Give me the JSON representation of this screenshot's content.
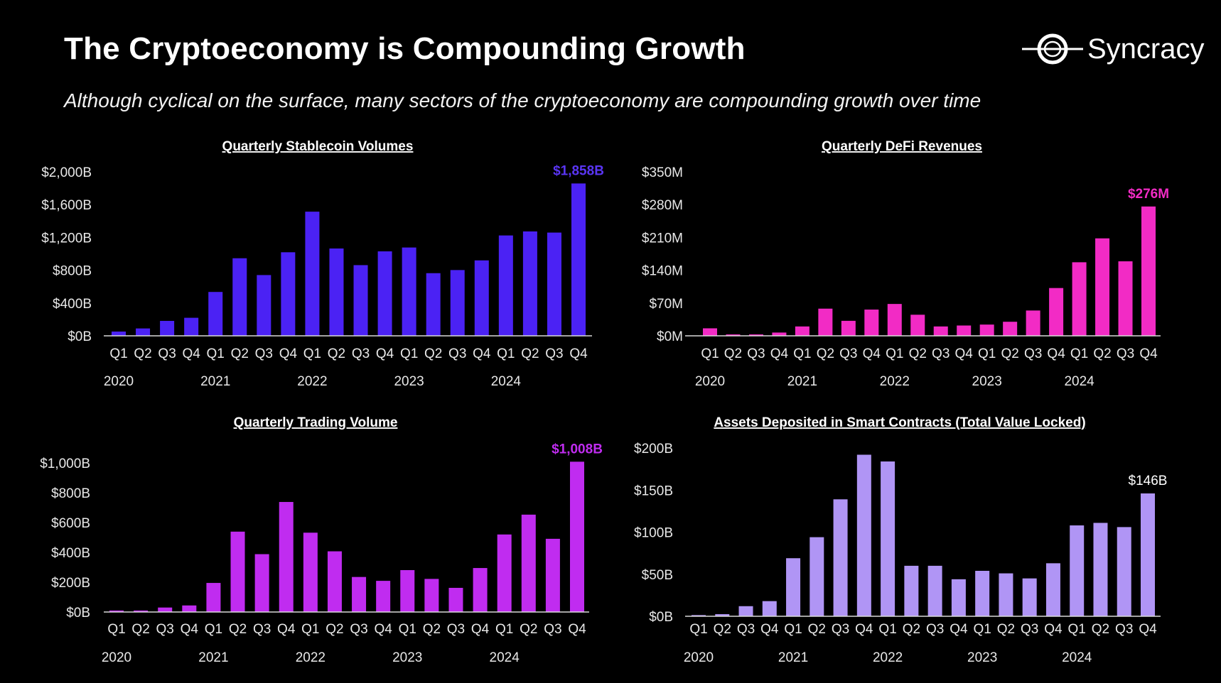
{
  "header": {
    "title": "The Cryptoeconomy is Compounding Growth",
    "subtitle": "Although cyclical on the surface, many sectors of the cryptoeconomy are compounding growth over time",
    "logo_text": "Syncracy"
  },
  "chart_data": [
    {
      "type": "bar",
      "title": "Quarterly Stablecoin Volumes",
      "categories": [
        "Q1",
        "Q2",
        "Q3",
        "Q4",
        "Q1",
        "Q2",
        "Q3",
        "Q4",
        "Q1",
        "Q2",
        "Q3",
        "Q4",
        "Q1",
        "Q2",
        "Q3",
        "Q4",
        "Q1",
        "Q2",
        "Q3",
        "Q4"
      ],
      "years": [
        "2020",
        "2021",
        "2022",
        "2023",
        "2024"
      ],
      "values": [
        52,
        90,
        182,
        220,
        535,
        946,
        741,
        1019,
        1514,
        1065,
        862,
        1030,
        1077,
        764,
        802,
        920,
        1224,
        1273,
        1259,
        1858
      ],
      "unit": "B",
      "yticks": [
        "$0B",
        "$400B",
        "$800B",
        "$1,200B",
        "$1,600B",
        "$2,000B"
      ],
      "ylim": [
        0,
        2000
      ],
      "callout": "$1,858B",
      "color": "#4b22f4",
      "callout_color": "#5a35f5"
    },
    {
      "type": "bar",
      "title": "Quarterly DeFi Revenues",
      "categories": [
        "Q1",
        "Q2",
        "Q3",
        "Q4",
        "Q1",
        "Q2",
        "Q3",
        "Q4",
        "Q1",
        "Q2",
        "Q3",
        "Q4",
        "Q1",
        "Q2",
        "Q3",
        "Q4",
        "Q1",
        "Q2",
        "Q3",
        "Q4"
      ],
      "years": [
        "2020",
        "2021",
        "2022",
        "2023",
        "2024"
      ],
      "values": [
        16,
        3,
        3,
        7,
        20,
        58,
        32,
        56,
        68,
        45,
        20,
        22,
        24,
        30,
        54,
        102,
        157,
        208,
        159,
        276
      ],
      "unit": "M",
      "yticks": [
        "$0M",
        "$70M",
        "$140M",
        "$210M",
        "$280M",
        "$350M"
      ],
      "ylim": [
        0,
        350
      ],
      "callout": "$276M",
      "color": "#f22bc5",
      "callout_color": "#f22bc5"
    },
    {
      "type": "bar",
      "title": "Quarterly Trading Volume",
      "categories": [
        "Q1",
        "Q2",
        "Q3",
        "Q4",
        "Q1",
        "Q2",
        "Q3",
        "Q4",
        "Q1",
        "Q2",
        "Q3",
        "Q4",
        "Q1",
        "Q2",
        "Q3",
        "Q4",
        "Q1",
        "Q2",
        "Q3",
        "Q4"
      ],
      "years": [
        "2020",
        "2021",
        "2022",
        "2023",
        "2024"
      ],
      "values": [
        10,
        10,
        30,
        44,
        195,
        539,
        388,
        738,
        532,
        407,
        235,
        209,
        281,
        222,
        162,
        295,
        520,
        653,
        491,
        1008
      ],
      "unit": "B",
      "yticks": [
        "$0B",
        "$200B",
        "$400B",
        "$600B",
        "$800B",
        "$1,000B"
      ],
      "ylim": [
        0,
        1000
      ],
      "callout": "$1,008B",
      "color": "#c02cf0",
      "callout_color": "#c02cf0"
    },
    {
      "type": "bar",
      "title": "Assets Deposited in Smart Contracts (Total Value Locked)",
      "categories": [
        "Q1",
        "Q2",
        "Q3",
        "Q4",
        "Q1",
        "Q2",
        "Q3",
        "Q4",
        "Q1",
        "Q2",
        "Q3",
        "Q4",
        "Q1",
        "Q2",
        "Q3",
        "Q4",
        "Q1",
        "Q2",
        "Q3",
        "Q4"
      ],
      "years": [
        "2020",
        "2021",
        "2022",
        "2023",
        "2024"
      ],
      "values": [
        1.4,
        2.5,
        12,
        18,
        69,
        94,
        139,
        192,
        184,
        60,
        60,
        44,
        54,
        51,
        45,
        63,
        108,
        111,
        106,
        146
      ],
      "unit": "B",
      "yticks": [
        "$0B",
        "$50B",
        "$100B",
        "$150B",
        "$200B"
      ],
      "ylim": [
        0,
        200
      ],
      "callout": "$146B",
      "color": "#b095f5",
      "callout_color": "#ffffff"
    }
  ]
}
